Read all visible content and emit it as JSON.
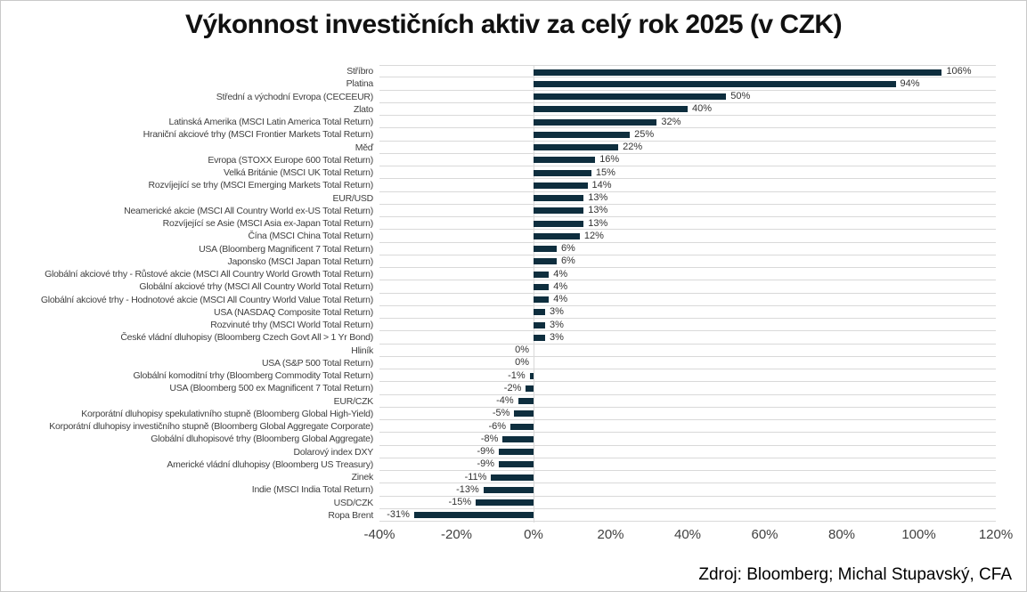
{
  "title": "Výkonnost investičních aktiv za celý rok 2025 (v CZK)",
  "source": "Zdroj: Bloomberg; Michal Stupavský, CFA",
  "colors": {
    "bar": "#0e2e3e",
    "gridline": "#d9d9d9",
    "text": "#404040"
  },
  "chart_data": {
    "type": "bar",
    "orientation": "horizontal",
    "title": "Výkonnost investičních aktiv za celý rok 2025 (v CZK)",
    "xlabel": "",
    "ylabel": "",
    "xlim": [
      -40,
      120
    ],
    "xticks": [
      "-40%",
      "-20%",
      "0%",
      "20%",
      "40%",
      "60%",
      "80%",
      "100%",
      "120%"
    ],
    "xtick_values": [
      -40,
      -20,
      0,
      20,
      40,
      60,
      80,
      100,
      120
    ],
    "grid": "horizontal row separators, light gray",
    "legend": false,
    "unit": "%",
    "categories": [
      "Stříbro",
      "Platina",
      "Střední a východní Evropa (CECEEUR)",
      "Zlato",
      "Latinská Amerika (MSCI Latin America Total Return)",
      "Hraniční akciové trhy (MSCI Frontier Markets Total Return)",
      "Měď",
      "Evropa (STOXX Europe 600 Total Return)",
      "Velká Británie (MSCI UK Total Return)",
      "Rozvíjející se trhy (MSCI Emerging Markets Total Return)",
      "EUR/USD",
      "Neamerické akcie (MSCI All Country World ex-US Total Return)",
      "Rozvíjející se Asie (MSCI Asia ex-Japan Total Return)",
      "Čína (MSCI China Total Return)",
      "USA (Bloomberg Magnificent 7 Total Return)",
      "Japonsko (MSCI Japan Total Return)",
      "Globální akciové trhy - Růstové akcie (MSCI All Country World Growth Total Return)",
      "Globální akciové trhy (MSCI All Country World Total Return)",
      "Globální akciové trhy - Hodnotové akcie (MSCI All Country World Value Total Return)",
      "USA (NASDAQ Composite Total Return)",
      "Rozvinuté trhy (MSCI World Total Return)",
      "České vládní dluhopisy (Bloomberg Czech Govt All > 1 Yr Bond)",
      "Hliník",
      "USA (S&P 500 Total Return)",
      "Globální komoditní trhy (Bloomberg Commodity Total Return)",
      "USA (Bloomberg 500 ex Magnificent 7 Total Return)",
      "EUR/CZK",
      "Korporátní dluhopisy spekulativního stupně (Bloomberg Global High-Yield)",
      "Korporátní dluhopisy investičního stupně (Bloomberg Global Aggregate Corporate)",
      "Globální dluhopisové trhy (Bloomberg Global Aggregate)",
      "Dolarový index DXY",
      "Americké vládní dluhopisy (Bloomberg US Treasury)",
      "Zinek",
      "Indie (MSCI India Total Return)",
      "USD/CZK",
      "Ropa Brent"
    ],
    "values": [
      106,
      94,
      50,
      40,
      32,
      25,
      22,
      16,
      15,
      14,
      13,
      13,
      13,
      12,
      6,
      6,
      4,
      4,
      4,
      3,
      3,
      3,
      0,
      0,
      -1,
      -2,
      -4,
      -5,
      -6,
      -8,
      -9,
      -9,
      -11,
      -13,
      -15,
      -31
    ],
    "data_labels": [
      "106%",
      "94%",
      "50%",
      "40%",
      "32%",
      "25%",
      "22%",
      "16%",
      "15%",
      "14%",
      "13%",
      "13%",
      "13%",
      "12%",
      "6%",
      "6%",
      "4%",
      "4%",
      "4%",
      "3%",
      "3%",
      "3%",
      "0%",
      "0%",
      "-1%",
      "-2%",
      "-4%",
      "-5%",
      "-6%",
      "-8%",
      "-9%",
      "-9%",
      "-11%",
      "-13%",
      "-15%",
      "-31%"
    ]
  }
}
